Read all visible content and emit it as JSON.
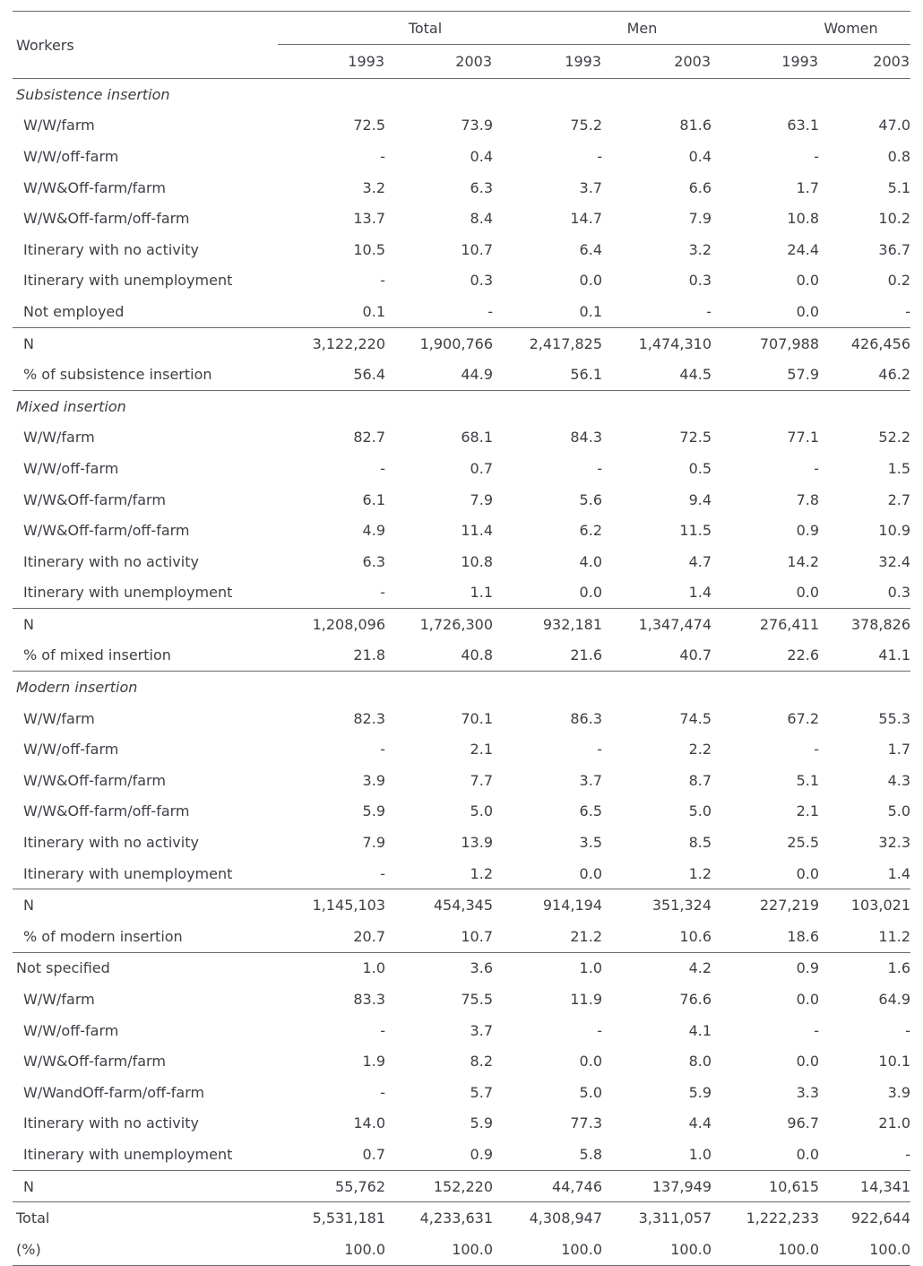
{
  "page": {
    "background_color": "#ffffff",
    "text_color": "#3e3e45",
    "rule_color": "#6b6b6b"
  },
  "table": {
    "corner_label": "Workers",
    "groups": [
      {
        "label": "Total"
      },
      {
        "label": "Men"
      },
      {
        "label": "Women"
      }
    ],
    "year_headers": [
      "1993",
      "2003",
      "1993",
      "2003",
      "1993",
      "2003"
    ],
    "sections": [
      {
        "title": "Subsistence insertion",
        "italic": true,
        "rows": [
          {
            "label": "W/W/farm",
            "values": [
              "72.5",
              "73.9",
              "75.2",
              "81.6",
              "63.1",
              "47.0"
            ]
          },
          {
            "label": "W/W/off-farm",
            "values": [
              "-",
              "0.4",
              "-",
              "0.4",
              "-",
              "0.8"
            ]
          },
          {
            "label": "W/W&Off-farm/farm",
            "values": [
              "3.2",
              "6.3",
              "3.7",
              "6.6",
              "1.7",
              "5.1"
            ]
          },
          {
            "label": "W/W&Off-farm/off-farm",
            "values": [
              "13.7",
              "8.4",
              "14.7",
              "7.9",
              "10.8",
              "10.2"
            ]
          },
          {
            "label": "Itinerary with no activity",
            "values": [
              "10.5",
              "10.7",
              "6.4",
              "3.2",
              "24.4",
              "36.7"
            ]
          },
          {
            "label": "Itinerary with unemployment",
            "values": [
              "-",
              "0.3",
              "0.0",
              "0.3",
              "0.0",
              "0.2"
            ]
          },
          {
            "label": "Not employed",
            "values": [
              "0.1",
              "-",
              "0.1",
              "-",
              "0.0",
              "-"
            ]
          }
        ],
        "n_row": {
          "label": "N",
          "values": [
            "3,122,220",
            "1,900,766",
            "2,417,825",
            "1,474,310",
            "707,988",
            "426,456"
          ]
        },
        "pct_row": {
          "label": "% of subsistence insertion",
          "values": [
            "56.4",
            "44.9",
            "56.1",
            "44.5",
            "57.9",
            "46.2"
          ]
        }
      },
      {
        "title": "Mixed insertion",
        "italic": true,
        "rows": [
          {
            "label": "W/W/farm",
            "values": [
              "82.7",
              "68.1",
              "84.3",
              "72.5",
              "77.1",
              "52.2"
            ]
          },
          {
            "label": "W/W/off-farm",
            "values": [
              "-",
              "0.7",
              "-",
              "0.5",
              "-",
              "1.5"
            ]
          },
          {
            "label": "W/W&Off-farm/farm",
            "values": [
              "6.1",
              "7.9",
              "5.6",
              "9.4",
              "7.8",
              "2.7"
            ]
          },
          {
            "label": "W/W&Off-farm/off-farm",
            "values": [
              "4.9",
              "11.4",
              "6.2",
              "11.5",
              "0.9",
              "10.9"
            ]
          },
          {
            "label": "Itinerary with no activity",
            "values": [
              "6.3",
              "10.8",
              "4.0",
              "4.7",
              "14.2",
              "32.4"
            ]
          },
          {
            "label": "Itinerary with unemployment",
            "values": [
              "-",
              "1.1",
              "0.0",
              "1.4",
              "0.0",
              "0.3"
            ]
          }
        ],
        "n_row": {
          "label": "N",
          "values": [
            "1,208,096",
            "1,726,300",
            "932,181",
            "1,347,474",
            "276,411",
            "378,826"
          ]
        },
        "pct_row": {
          "label": "% of mixed insertion",
          "values": [
            "21.8",
            "40.8",
            "21.6",
            "40.7",
            "22.6",
            "41.1"
          ]
        }
      },
      {
        "title": "Modern insertion",
        "italic": true,
        "rows": [
          {
            "label": "W/W/farm",
            "values": [
              "82.3",
              "70.1",
              "86.3",
              "74.5",
              "67.2",
              "55.3"
            ]
          },
          {
            "label": "W/W/off-farm",
            "values": [
              "-",
              "2.1",
              "-",
              "2.2",
              "-",
              "1.7"
            ]
          },
          {
            "label": "W/W&Off-farm/farm",
            "values": [
              "3.9",
              "7.7",
              "3.7",
              "8.7",
              "5.1",
              "4.3"
            ]
          },
          {
            "label": "W/W&Off-farm/off-farm",
            "values": [
              "5.9",
              "5.0",
              "6.5",
              "5.0",
              "2.1",
              "5.0"
            ]
          },
          {
            "label": "Itinerary with no activity",
            "values": [
              "7.9",
              "13.9",
              "3.5",
              "8.5",
              "25.5",
              "32.3"
            ]
          },
          {
            "label": "Itinerary with unemployment",
            "values": [
              "-",
              "1.2",
              "0.0",
              "1.2",
              "0.0",
              "1.4"
            ]
          }
        ],
        "n_row": {
          "label": "N",
          "values": [
            "1,145,103",
            "454,345",
            "914,194",
            "351,324",
            "227,219",
            "103,021"
          ]
        },
        "pct_row": {
          "label": "% of modern insertion",
          "values": [
            "20.7",
            "10.7",
            "21.2",
            "10.6",
            "18.6",
            "11.2"
          ]
        }
      },
      {
        "title": "Not specified",
        "italic": false,
        "title_values": [
          "1.0",
          "3.6",
          "1.0",
          "4.2",
          "0.9",
          "1.6"
        ],
        "rows": [
          {
            "label": "W/W/farm",
            "values": [
              "83.3",
              "75.5",
              "11.9",
              "76.6",
              "0.0",
              "64.9"
            ]
          },
          {
            "label": "W/W/off-farm",
            "values": [
              "-",
              "3.7",
              "-",
              "4.1",
              "-",
              "-"
            ]
          },
          {
            "label": "W/W&Off-farm/farm",
            "values": [
              "1.9",
              "8.2",
              "0.0",
              "8.0",
              "0.0",
              "10.1"
            ]
          },
          {
            "label": "W/WandOff-farm/off-farm",
            "values": [
              "-",
              "5.7",
              "5.0",
              "5.9",
              "3.3",
              "3.9"
            ]
          },
          {
            "label": "Itinerary with no activity",
            "values": [
              "14.0",
              "5.9",
              "77.3",
              "4.4",
              "96.7",
              "21.0"
            ]
          },
          {
            "label": "Itinerary with unemployment",
            "values": [
              "0.7",
              "0.9",
              "5.8",
              "1.0",
              "0.0",
              "-"
            ]
          }
        ],
        "n_row": {
          "label": "N",
          "values": [
            "55,762",
            "152,220",
            "44,746",
            "137,949",
            "10,615",
            "14,341"
          ]
        }
      }
    ],
    "footer_rows": [
      {
        "label": "Total",
        "values": [
          "5,531,181",
          "4,233,631",
          "4,308,947",
          "3,311,057",
          "1,222,233",
          "922,644"
        ]
      },
      {
        "label": "(%)",
        "values": [
          "100.0",
          "100.0",
          "100.0",
          "100.0",
          "100.0",
          "100.0"
        ]
      }
    ]
  }
}
